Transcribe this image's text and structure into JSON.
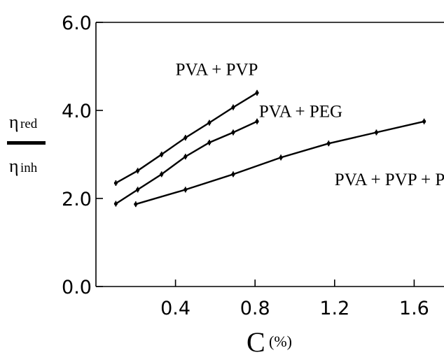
{
  "chart_data": {
    "type": "line",
    "xlabel": "C",
    "xlabel_unit": "(%)",
    "ylabel_numerator": "η",
    "ylabel_numerator_sub": "red",
    "ylabel_denominator": "η",
    "ylabel_denominator_sub": "inh",
    "xlim": [
      0.0,
      1.75
    ],
    "ylim": [
      0.0,
      6.0
    ],
    "x_ticks": [
      {
        "value": 0.4,
        "label": "0.4"
      },
      {
        "value": 0.8,
        "label": "0.8"
      },
      {
        "value": 1.2,
        "label": "1.2"
      },
      {
        "value": 1.6,
        "label": "1.6"
      }
    ],
    "y_ticks": [
      {
        "value": 0.0,
        "label": "0.0"
      },
      {
        "value": 2.0,
        "label": "2.0"
      },
      {
        "value": 4.0,
        "label": "4.0"
      },
      {
        "value": 6.0,
        "label": "6.0"
      }
    ],
    "grid": false,
    "series": [
      {
        "name": "PVA + PVP",
        "label_anchor": {
          "x": 0.4,
          "y": 4.8
        },
        "x": [
          0.1,
          0.21,
          0.33,
          0.45,
          0.57,
          0.69,
          0.81
        ],
        "y": [
          2.35,
          2.63,
          3.0,
          3.38,
          3.72,
          4.07,
          4.4
        ]
      },
      {
        "name": "PVA + PEG",
        "label_anchor": {
          "x": 0.82,
          "y": 3.85
        },
        "x": [
          0.1,
          0.21,
          0.33,
          0.45,
          0.57,
          0.69,
          0.81
        ],
        "y": [
          1.88,
          2.2,
          2.55,
          2.95,
          3.27,
          3.5,
          3.75
        ]
      },
      {
        "name": "PVA + PVP + PEG",
        "label_anchor": {
          "x": 1.2,
          "y": 2.3
        },
        "x": [
          0.2,
          0.45,
          0.69,
          0.93,
          1.17,
          1.41,
          1.65
        ],
        "y": [
          1.87,
          2.2,
          2.55,
          2.93,
          3.25,
          3.5,
          3.75
        ]
      }
    ]
  }
}
